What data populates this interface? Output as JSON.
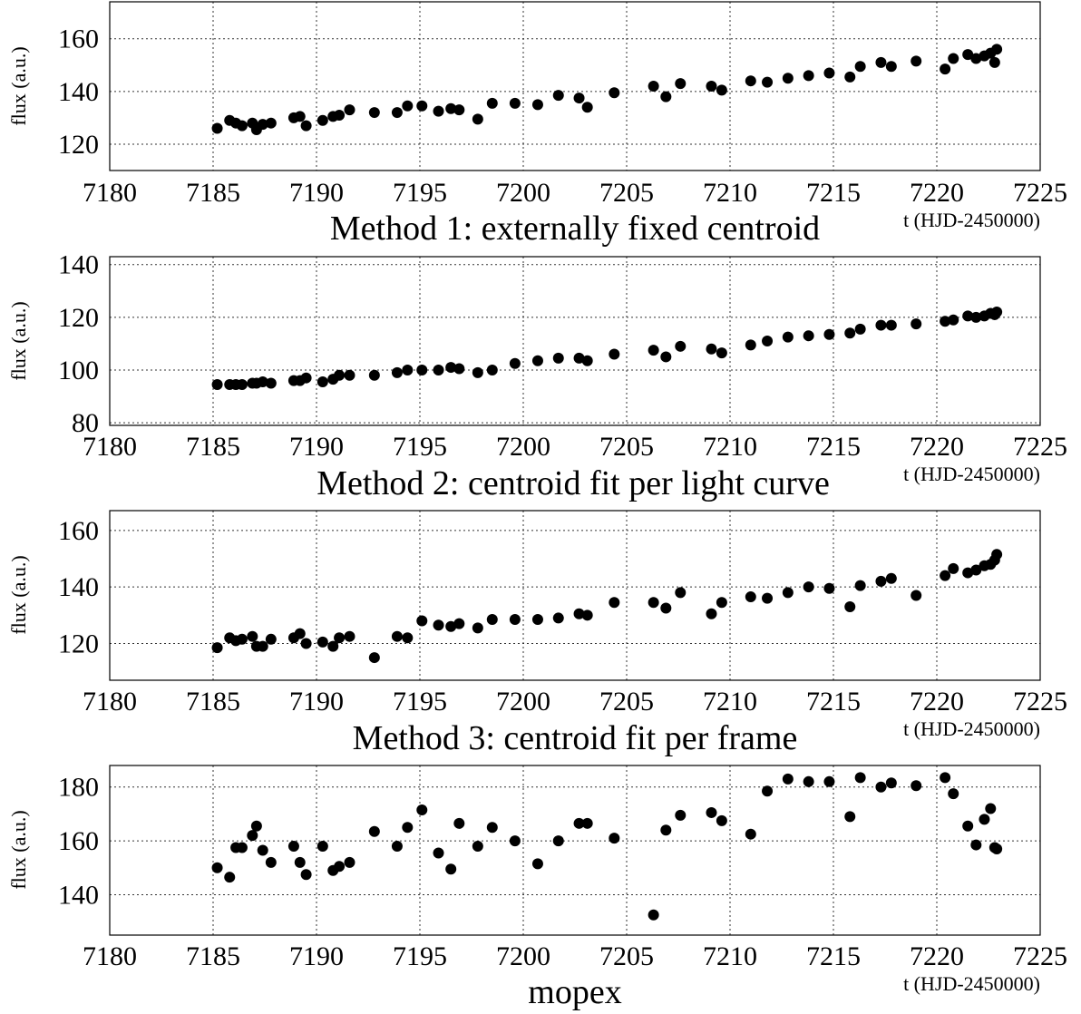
{
  "chart_data": [
    {
      "type": "scatter",
      "title": "Method 1: externally fixed centroid",
      "xlabel": "t (HJD-2450000)",
      "ylabel": "flux (a.u.)",
      "xlim": [
        7180,
        7225
      ],
      "ylim": [
        110,
        174
      ],
      "grid": true,
      "xticks": [
        "7180",
        "7185",
        "7190",
        "7195",
        "7200",
        "7205",
        "7210",
        "7215",
        "7220",
        "7225"
      ],
      "yticks": [
        {
          "value": 120,
          "label": "120"
        },
        {
          "value": 140,
          "label": "140"
        },
        {
          "value": 160,
          "label": "160"
        }
      ],
      "series": [
        {
          "x": [
            7185.2,
            7185.8,
            7186.1,
            7186.4,
            7186.9,
            7187.1,
            7187.4,
            7187.8,
            7188.9,
            7189.2,
            7189.5,
            7190.3,
            7190.8,
            7191.1,
            7191.6,
            7192.8,
            7193.9,
            7194.4,
            7195.1,
            7195.9,
            7196.5,
            7196.9,
            7197.8,
            7198.5,
            7199.6,
            7200.7,
            7201.7,
            7202.7,
            7203.1,
            7204.4,
            7206.3,
            7206.9,
            7207.6,
            7209.1,
            7209.6,
            7211.0,
            7211.8,
            7212.8,
            7213.8,
            7214.8,
            7215.8,
            7216.3,
            7217.3,
            7217.8,
            7219.0,
            7220.4,
            7220.8,
            7221.5,
            7221.9,
            7222.3,
            7222.6,
            7222.8,
            7222.9
          ],
          "y": [
            126.0,
            129.0,
            128.0,
            127.0,
            128.0,
            125.5,
            127.5,
            128.0,
            130.0,
            130.5,
            127.0,
            129.0,
            130.5,
            131.0,
            133.0,
            132.0,
            132.0,
            134.5,
            134.5,
            132.5,
            133.5,
            133.0,
            129.5,
            135.5,
            135.5,
            135.0,
            138.5,
            137.5,
            134.0,
            139.5,
            142.0,
            138.0,
            143.0,
            142.0,
            140.5,
            144.0,
            143.5,
            145.0,
            146.0,
            147.0,
            145.5,
            149.5,
            151.0,
            149.5,
            151.5,
            148.5,
            152.5,
            154.0,
            152.5,
            153.5,
            154.5,
            151.0,
            156.0
          ]
        }
      ]
    },
    {
      "type": "scatter",
      "title": "Method 2: centroid fit per light curve",
      "xlabel": "t (HJD-2450000)",
      "ylabel": "flux (a.u.)",
      "xlim": [
        7180,
        7225
      ],
      "ylim": [
        79,
        143
      ],
      "grid": true,
      "xticks": [
        "7180",
        "7185",
        "7190",
        "7195",
        "7200",
        "7205",
        "7210",
        "7215",
        "7220",
        "7225"
      ],
      "yticks": [
        {
          "value": 80,
          "label": "80"
        },
        {
          "value": 100,
          "label": "100"
        },
        {
          "value": 120,
          "label": "120"
        },
        {
          "value": 140,
          "label": "140"
        }
      ],
      "series": [
        {
          "x": [
            7185.2,
            7185.8,
            7186.1,
            7186.4,
            7186.9,
            7187.1,
            7187.4,
            7187.8,
            7188.9,
            7189.2,
            7189.5,
            7190.3,
            7190.8,
            7191.1,
            7191.6,
            7192.8,
            7193.9,
            7194.4,
            7195.1,
            7195.9,
            7196.5,
            7196.9,
            7197.8,
            7198.5,
            7199.6,
            7200.7,
            7201.7,
            7202.7,
            7203.1,
            7204.4,
            7206.3,
            7206.9,
            7207.6,
            7209.1,
            7209.6,
            7211.0,
            7211.8,
            7212.8,
            7213.8,
            7214.8,
            7215.8,
            7216.3,
            7217.3,
            7217.8,
            7219.0,
            7220.4,
            7220.8,
            7221.5,
            7221.9,
            7222.3,
            7222.6,
            7222.8,
            7222.9
          ],
          "y": [
            94.5,
            94.5,
            94.5,
            94.5,
            95.0,
            95.0,
            95.5,
            95.0,
            96.0,
            96.0,
            97.0,
            95.5,
            96.5,
            98.0,
            98.0,
            98.0,
            99.0,
            100.0,
            100.0,
            100.0,
            101.0,
            100.5,
            99.0,
            100.0,
            102.5,
            103.5,
            104.5,
            104.5,
            103.5,
            106.0,
            107.5,
            105.0,
            109.0,
            108.0,
            106.5,
            109.5,
            111.0,
            112.5,
            113.0,
            113.5,
            114.0,
            115.5,
            117.0,
            117.0,
            117.5,
            118.5,
            119.0,
            120.5,
            120.0,
            120.5,
            121.5,
            121.0,
            122.0
          ]
        }
      ]
    },
    {
      "type": "scatter",
      "title": "Method 3: centroid fit per frame",
      "xlabel": "t (HJD-2450000)",
      "ylabel": "flux (a.u.)",
      "xlim": [
        7180,
        7225
      ],
      "ylim": [
        107,
        167
      ],
      "grid": true,
      "xticks": [
        "7180",
        "7185",
        "7190",
        "7195",
        "7200",
        "7205",
        "7210",
        "7215",
        "7220",
        "7225"
      ],
      "yticks": [
        {
          "value": 120,
          "label": "120"
        },
        {
          "value": 140,
          "label": "140"
        },
        {
          "value": 160,
          "label": "160"
        }
      ],
      "series": [
        {
          "x": [
            7185.2,
            7185.8,
            7186.1,
            7186.4,
            7186.9,
            7187.1,
            7187.4,
            7187.8,
            7188.9,
            7189.2,
            7189.5,
            7190.3,
            7190.8,
            7191.1,
            7191.6,
            7192.8,
            7193.9,
            7194.4,
            7195.1,
            7195.9,
            7196.5,
            7196.9,
            7197.8,
            7198.5,
            7199.6,
            7200.7,
            7201.7,
            7202.7,
            7203.1,
            7204.4,
            7206.3,
            7206.9,
            7207.6,
            7209.1,
            7209.6,
            7211.0,
            7211.8,
            7212.8,
            7213.8,
            7214.8,
            7215.8,
            7216.3,
            7217.3,
            7217.8,
            7219.0,
            7220.4,
            7220.8,
            7221.5,
            7221.9,
            7222.3,
            7222.6,
            7222.8,
            7222.9
          ],
          "y": [
            118.5,
            122.0,
            121.0,
            121.5,
            122.5,
            119.0,
            119.0,
            121.5,
            122.0,
            123.5,
            120.0,
            120.5,
            119.0,
            122.0,
            122.5,
            115.0,
            122.5,
            122.0,
            128.0,
            126.5,
            126.0,
            127.0,
            125.5,
            128.5,
            128.5,
            128.5,
            129.0,
            130.5,
            130.0,
            134.5,
            134.5,
            132.5,
            138.0,
            130.5,
            134.5,
            136.5,
            136.0,
            138.0,
            140.0,
            139.5,
            133.0,
            140.5,
            142.0,
            143.0,
            137.0,
            144.0,
            146.5,
            145.0,
            146.0,
            147.5,
            148.0,
            149.5,
            151.5
          ]
        }
      ]
    },
    {
      "type": "scatter",
      "title": "mopex",
      "xlabel": "t (HJD-2450000)",
      "ylabel": "flux (a.u.)",
      "xlim": [
        7180,
        7225
      ],
      "ylim": [
        125,
        188
      ],
      "grid": true,
      "xticks": [
        "7180",
        "7185",
        "7190",
        "7195",
        "7200",
        "7205",
        "7210",
        "7215",
        "7220",
        "7225"
      ],
      "yticks": [
        {
          "value": 140,
          "label": "140"
        },
        {
          "value": 160,
          "label": "160"
        },
        {
          "value": 180,
          "label": "180"
        }
      ],
      "series": [
        {
          "x": [
            7185.2,
            7185.8,
            7186.1,
            7186.4,
            7186.9,
            7187.1,
            7187.4,
            7187.8,
            7188.9,
            7189.2,
            7189.5,
            7190.3,
            7190.8,
            7191.1,
            7191.6,
            7192.8,
            7193.9,
            7194.4,
            7195.1,
            7195.9,
            7196.5,
            7196.9,
            7197.8,
            7198.5,
            7199.6,
            7200.7,
            7201.7,
            7202.7,
            7203.1,
            7204.4,
            7206.3,
            7206.9,
            7207.6,
            7209.1,
            7209.6,
            7211.0,
            7211.8,
            7212.8,
            7213.8,
            7214.8,
            7215.8,
            7216.3,
            7217.3,
            7217.8,
            7219.0,
            7220.4,
            7220.8,
            7221.5,
            7221.9,
            7222.3,
            7222.6,
            7222.8,
            7222.9
          ],
          "y": [
            150.0,
            146.5,
            157.5,
            157.5,
            162.0,
            165.5,
            156.5,
            152.0,
            158.0,
            152.0,
            147.5,
            158.0,
            149.0,
            150.5,
            152.0,
            163.5,
            158.0,
            165.0,
            171.5,
            155.5,
            149.5,
            166.5,
            158.0,
            165.0,
            160.0,
            151.5,
            160.0,
            166.5,
            166.5,
            161.0,
            132.5,
            164.0,
            169.5,
            170.5,
            167.5,
            162.5,
            178.5,
            183.0,
            182.0,
            182.0,
            169.0,
            183.5,
            180.0,
            181.5,
            180.5,
            183.5,
            177.5,
            165.5,
            158.5,
            168.0,
            172.0,
            157.5,
            157.0
          ]
        }
      ]
    }
  ]
}
